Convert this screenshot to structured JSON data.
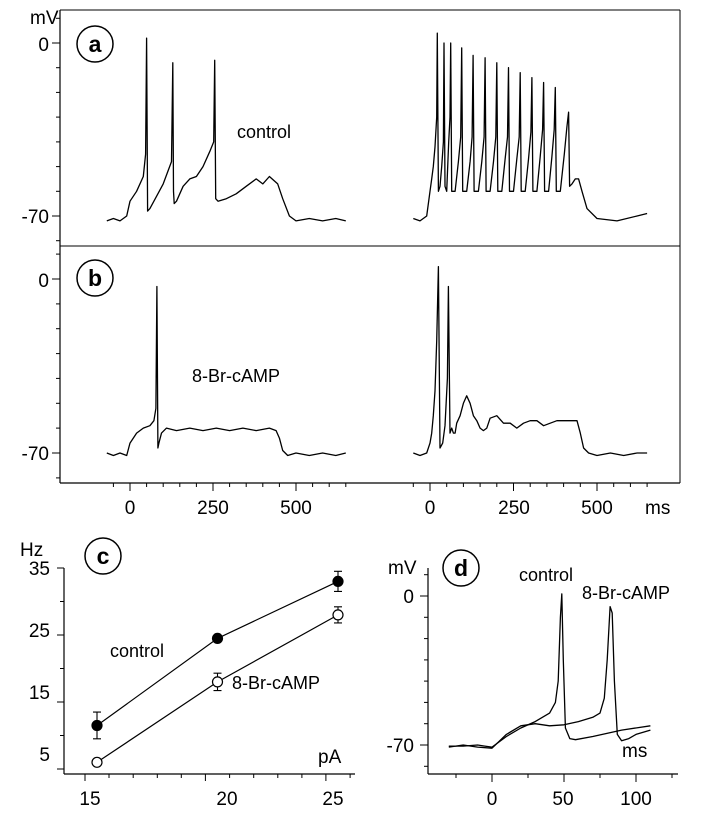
{
  "chart_data": [
    {
      "panel": "a",
      "type": "line",
      "ylabel": "mV",
      "y_ticks": [
        "0",
        "-70"
      ],
      "ylim": [
        -98,
        12
      ],
      "annotation": "control",
      "sweeps": [
        {
          "x": [
            -70,
            -50,
            -30,
            -10,
            0,
            20,
            40,
            47,
            50,
            53,
            60,
            80,
            100,
            125,
            129,
            131,
            133,
            140,
            160,
            180,
            200,
            220,
            240,
            252,
            255,
            258,
            265,
            290,
            320,
            350,
            380,
            400,
            420,
            445,
            460,
            480,
            500,
            540,
            580,
            620,
            650
          ],
          "y": [
            -72,
            -71,
            -72,
            -70,
            -64,
            -60,
            -54,
            -45,
            2,
            -68,
            -67,
            -62,
            -57,
            -48,
            -8,
            -60,
            -65,
            -64,
            -58,
            -55,
            -54,
            -50,
            -44,
            -40,
            -7,
            -63,
            -64,
            -63,
            -61,
            -58,
            -55,
            -57,
            -54,
            -57,
            -63,
            -70,
            -72,
            -71,
            -72,
            -71,
            -72
          ]
        },
        {
          "x": [
            -50,
            -30,
            -10,
            0,
            5,
            10,
            15,
            20,
            22,
            25,
            30,
            35,
            40,
            42,
            45,
            50,
            56,
            60,
            62,
            65,
            75,
            85,
            92,
            95,
            98,
            110,
            120,
            126,
            129,
            132,
            145,
            155,
            162,
            165,
            168,
            180,
            190,
            197,
            200,
            203,
            215,
            225,
            232,
            235,
            238,
            250,
            260,
            267,
            270,
            273,
            285,
            295,
            302,
            305,
            308,
            320,
            330,
            337,
            340,
            343,
            355,
            365,
            372,
            375,
            378,
            390,
            402,
            410,
            415,
            418,
            425,
            435,
            445,
            455,
            470,
            500,
            560,
            620,
            650
          ],
          "y": [
            -71,
            -72,
            -70,
            -60,
            -55,
            -50,
            -42,
            -30,
            4,
            -60,
            -58,
            -50,
            -40,
            0,
            -58,
            -60,
            -40,
            -30,
            0,
            -60,
            -60,
            -48,
            -38,
            -2,
            -60,
            -60,
            -48,
            -38,
            -5,
            -60,
            -60,
            -48,
            -38,
            -6,
            -60,
            -60,
            -48,
            -38,
            -8,
            -60,
            -60,
            -47,
            -38,
            -10,
            -60,
            -60,
            -47,
            -38,
            -12,
            -60,
            -60,
            -47,
            -36,
            -14,
            -60,
            -60,
            -46,
            -35,
            -16,
            -60,
            -60,
            -46,
            -35,
            -18,
            -60,
            -60,
            -45,
            -34,
            -28,
            -58,
            -57,
            -55,
            -55,
            -60,
            -67,
            -71,
            -72,
            -70,
            -69
          ]
        }
      ]
    },
    {
      "panel": "b",
      "type": "line",
      "y_ticks": [
        "0",
        "-70"
      ],
      "ylim": [
        -83,
        13
      ],
      "x_ticks": [
        "0",
        "250",
        "500"
      ],
      "xlabel": "ms",
      "annotation": "8-Br-cAMP",
      "sweeps": [
        {
          "x": [
            -70,
            -50,
            -30,
            -10,
            0,
            20,
            40,
            60,
            72,
            78,
            81,
            84,
            87,
            95,
            110,
            140,
            180,
            220,
            260,
            300,
            340,
            380,
            420,
            440,
            450,
            460,
            475,
            500,
            540,
            580,
            620,
            650
          ],
          "y": [
            -70,
            -71,
            -70,
            -71,
            -66,
            -62,
            -60,
            -59,
            -57,
            -52,
            -3,
            -68,
            -66,
            -62,
            -60,
            -61,
            -60,
            -61,
            -60,
            -61,
            -60,
            -61,
            -60,
            -61,
            -64,
            -69,
            -71,
            -70,
            -71,
            -70,
            -71,
            -70
          ],
          "cap": 1
        },
        {
          "x": [
            -50,
            -30,
            -10,
            0,
            5,
            10,
            15,
            20,
            25,
            30,
            38,
            45,
            52,
            55,
            60,
            65,
            70,
            75,
            80,
            90,
            100,
            110,
            120,
            130,
            140,
            150,
            160,
            170,
            180,
            200,
            220,
            240,
            260,
            280,
            300,
            320,
            340,
            360,
            380,
            400,
            420,
            440,
            450,
            460,
            475,
            500,
            540,
            580,
            620,
            650
          ],
          "y": [
            -70,
            -71,
            -70,
            -66,
            -62,
            -55,
            -45,
            -25,
            5,
            -68,
            -66,
            -59,
            -40,
            -3,
            -62,
            -60,
            -62,
            -62,
            -58,
            -55,
            -50,
            -47,
            -50,
            -55,
            -57,
            -60,
            -61,
            -60,
            -56,
            -55,
            -58,
            -58,
            -60,
            -58,
            -57,
            -57,
            -59,
            -58,
            -57,
            -57,
            -57,
            -57,
            -62,
            -68,
            -70,
            -71,
            -70,
            -71,
            -70,
            -70
          ],
          "cap": 4
        }
      ]
    },
    {
      "panel": "c",
      "type": "line",
      "ylabel": "Hz",
      "xlabel": "pA",
      "x_ticks": [
        "15",
        "20",
        "25"
      ],
      "y_ticks": [
        "35",
        "25",
        "15",
        "5"
      ],
      "xlim": [
        14.7,
        26.2
      ],
      "ylim": [
        2.5,
        35
      ],
      "series": [
        {
          "name": "control",
          "x": [
            15.5,
            20.5,
            25.5
          ],
          "y": [
            11.5,
            24.5,
            33
          ],
          "err": [
            2,
            0.5,
            1.5
          ],
          "marker": "filled"
        },
        {
          "name": "8-Br-cAMP",
          "x": [
            15.5,
            20.5,
            25.5
          ],
          "y": [
            6,
            18,
            28
          ],
          "err": [
            0,
            1.3,
            1.2
          ],
          "marker": "open"
        }
      ]
    },
    {
      "panel": "d",
      "type": "line",
      "ylabel": "mV",
      "xlabel": "ms",
      "x_ticks": [
        "0",
        "50",
        "100"
      ],
      "y_ticks": [
        "0",
        "-70"
      ],
      "xlim": [
        -45,
        120
      ],
      "ylim": [
        -80,
        12
      ],
      "series": [
        {
          "name": "control",
          "x": [
            -30,
            -20,
            -10,
            -5,
            0,
            10,
            20,
            30,
            40,
            44,
            46,
            47.5,
            48.5,
            49.5,
            51,
            54,
            58,
            70,
            90,
            110
          ],
          "y": [
            -70.5,
            -70.5,
            -70,
            -70.5,
            -71,
            -66,
            -62,
            -59,
            -55,
            -50,
            -40,
            -10,
            1,
            -30,
            -62,
            -67,
            -67.5,
            -66,
            -63,
            -61
          ]
        },
        {
          "name": "8-Br-cAMP",
          "x": [
            -30,
            -20,
            -10,
            0,
            10,
            20,
            30,
            40,
            50,
            60,
            70,
            75,
            78,
            80,
            82,
            83.5,
            85,
            87,
            90,
            95,
            100,
            110
          ],
          "y": [
            -71,
            -70,
            -71,
            -71.5,
            -65,
            -61,
            -60,
            -61,
            -60.5,
            -59,
            -57,
            -55,
            -48,
            -30,
            -5,
            -8,
            -40,
            -65,
            -68,
            -67,
            -65,
            -63
          ]
        }
      ]
    }
  ],
  "labels": {
    "a": "a",
    "b": "b",
    "c": "c",
    "d": "d",
    "mv_ab": "mV",
    "mv_d": "mV",
    "hz": "Hz",
    "control_a": "control",
    "cam_b": "8-Br-cAMP",
    "control_c": "control",
    "cam_c": "8-Br-cAMP",
    "control_d": "control",
    "cam_d": "8-Br-cAMP",
    "ms_b": "ms",
    "pa_c": "pA",
    "ms_d": "ms"
  }
}
